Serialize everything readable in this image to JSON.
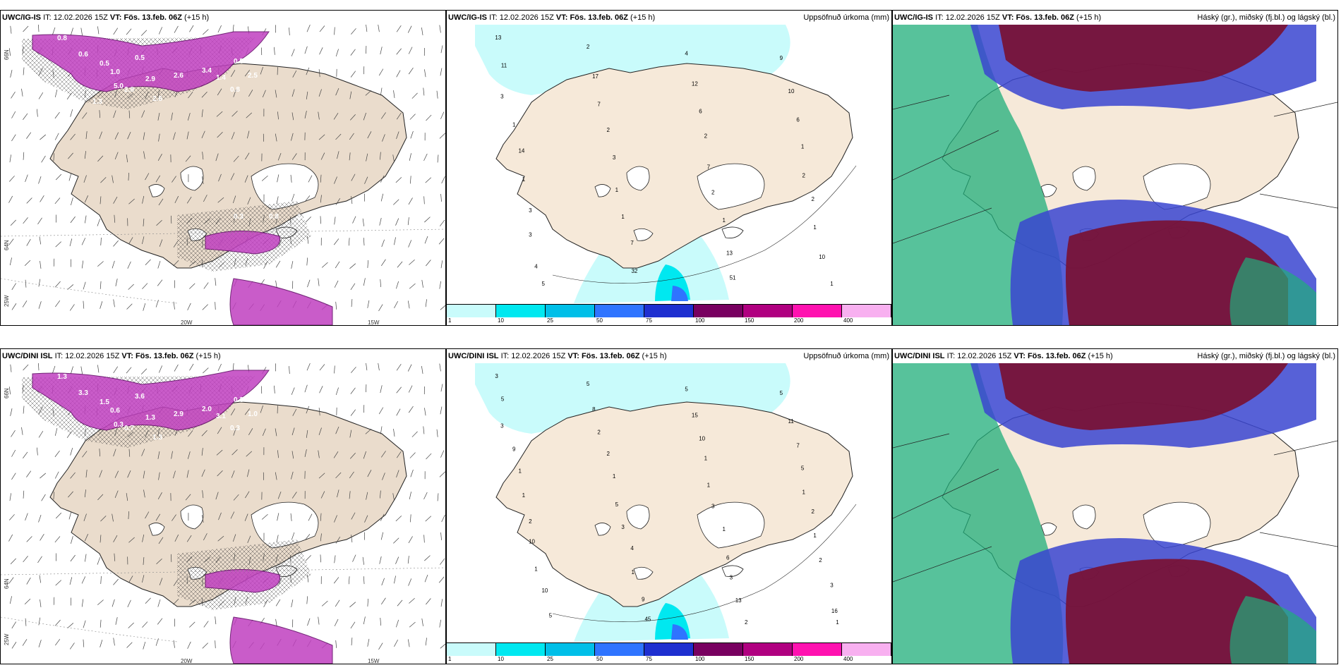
{
  "panels": [
    {
      "model": "UWC/IG-IS",
      "it_label": "IT:",
      "it_value": "12.02.2026 15Z",
      "vt_label": "VT:",
      "vt_value": "Fös. 13.feb. 06Z",
      "lead": "(+15 h)",
      "right_label": "",
      "kind": "wind",
      "lat_labels": [
        "66N",
        "64N",
        "25W"
      ],
      "lon_labels": [
        "20W",
        "15W"
      ],
      "values": [
        "0.8",
        "2.5",
        "0.6",
        "0.5",
        "3.4",
        "2.9",
        "2.6",
        "1.4",
        "2.5",
        "2.8",
        "0.5",
        "1.0",
        "5.0",
        "0.8",
        "0.5",
        "0.5",
        "2.6",
        "1.3",
        "0.3",
        "0.8",
        "1.2",
        "1.5"
      ]
    },
    {
      "model": "UWC/IG-IS",
      "it_label": "IT:",
      "it_value": "12.02.2026 15Z",
      "vt_label": "VT:",
      "vt_value": "Fös. 13.feb. 06Z",
      "lead": "(+15 h)",
      "right_label": "Uppsöfnuð úrkoma (mm)",
      "kind": "precip",
      "values": [
        "13",
        "2",
        "4",
        "9",
        "11",
        "17",
        "12",
        "10",
        "3",
        "7",
        "6",
        "6",
        "1",
        "2",
        "2",
        "1",
        "14",
        "3",
        "7",
        "2",
        "1",
        "1",
        "2",
        "2",
        "3",
        "1",
        "1",
        "1",
        "3",
        "7",
        "13",
        "10",
        "4",
        "32",
        "51",
        "1",
        "5"
      ],
      "legend_ticks": [
        "1",
        "10",
        "25",
        "50",
        "75",
        "100",
        "150",
        "200",
        "400"
      ],
      "legend_colors": [
        "#c9fbfb",
        "#00e8f0",
        "#00bfe8",
        "#2f74ff",
        "#1e2fd0",
        "#780060",
        "#b00080",
        "#ff12b0",
        "#f8b0f0"
      ]
    },
    {
      "model": "UWC/IG-IS",
      "it_label": "IT:",
      "it_value": "12.02.2026 15Z",
      "vt_label": "VT:",
      "vt_value": "Fös. 13.feb. 06Z",
      "lead": "(+15 h)",
      "right_label": "Háský (gr.), miðský (fj.bl.) og lágský (bl.)",
      "kind": "cloud"
    },
    {
      "model": "UWC/DINI ISL",
      "it_label": "IT:",
      "it_value": "12.02.2026 15Z",
      "vt_label": "VT:",
      "vt_value": "Fös. 13.feb. 06Z",
      "lead": "(+15 h)",
      "right_label": "",
      "kind": "wind",
      "lat_labels": [
        "66N",
        "64N",
        "25W"
      ],
      "lon_labels": [
        "20W",
        "15W"
      ],
      "values": [
        "1.3",
        "3.4",
        "3.3",
        "3.6",
        "2.0",
        "1.3",
        "2.9",
        "3.1",
        "1.0",
        "0.7",
        "1.5",
        "0.6",
        "0.3",
        "0.3",
        "0.3",
        "2.5",
        "1.3"
      ]
    },
    {
      "model": "UWC/DINI ISL",
      "it_label": "IT:",
      "it_value": "12.02.2026 15Z",
      "vt_label": "VT:",
      "vt_value": "Fös. 13.feb. 06Z",
      "lead": "(+15 h)",
      "right_label": "Uppsöfnuð úrkoma (mm)",
      "kind": "precip",
      "values": [
        "3",
        "5",
        "5",
        "5",
        "5",
        "8",
        "15",
        "11",
        "3",
        "2",
        "10",
        "7",
        "9",
        "2",
        "1",
        "5",
        "1",
        "1",
        "1",
        "1",
        "1",
        "5",
        "3",
        "2",
        "2",
        "3",
        "1",
        "1",
        "10",
        "4",
        "6",
        "2",
        "1",
        "1",
        "3",
        "3",
        "10",
        "9",
        "13",
        "16",
        "5",
        "45",
        "2",
        "1"
      ],
      "legend_ticks": [
        "1",
        "10",
        "25",
        "50",
        "75",
        "100",
        "150",
        "200",
        "400"
      ],
      "legend_colors": [
        "#c9fbfb",
        "#00e8f0",
        "#00bfe8",
        "#2f74ff",
        "#1e2fd0",
        "#780060",
        "#b00080",
        "#ff12b0",
        "#f8b0f0"
      ]
    },
    {
      "model": "UWC/DINI ISL",
      "it_label": "IT:",
      "it_value": "12.02.2026 15Z",
      "vt_label": "VT:",
      "vt_value": "Fös. 13.feb. 06Z",
      "lead": "(+15 h)",
      "right_label": "Háský (gr.), miðský (fj.bl.) og lágský (bl.)",
      "kind": "cloud"
    }
  ],
  "colors": {
    "land": "#f6e9d9",
    "land_wind": "#eadccc",
    "precip_light": "#c9fbfb",
    "precip_mid": "#00e8f0",
    "precip_blue": "#2f74ff",
    "magenta": "#c040c0",
    "cloud_high": "#1fae7a",
    "cloud_mid": "#3a45d0",
    "cloud_low": "#7a1030"
  }
}
